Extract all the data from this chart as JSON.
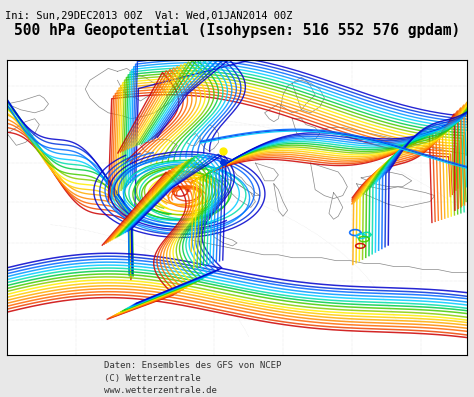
{
  "title_line1": "Ini: Sun,29DEC2013 00Z  Val: Wed,01JAN2014 00Z",
  "title_line2": "500 hPa Geopotential (Isohypsen: 516 552 576 gpdam)",
  "footer_line1": "Daten: Ensembles des GFS von NCEP",
  "footer_line2": "(C) Wetterzentrale",
  "footer_line3": "www.wetterzentrale.de",
  "background_color": "#e8e8e8",
  "map_bg": "#ffffff",
  "border_color": "#000000",
  "title1_fontsize": 7.5,
  "title2_fontsize": 10.5,
  "footer_fontsize": 6.5,
  "line_colors_warm": [
    "#cc0000",
    "#dd2200",
    "#ee4400",
    "#ff6600",
    "#ff8800",
    "#ffaa00",
    "#ffcc00",
    "#ffee00"
  ],
  "line_colors_cool": [
    "#0000cc",
    "#0033dd",
    "#0066ff",
    "#0099ff",
    "#00ccff",
    "#00ddaa",
    "#00cc44",
    "#44cc00",
    "#88cc00"
  ],
  "line_colors_all": [
    "#cc0000",
    "#ee4400",
    "#ff6600",
    "#ff8800",
    "#ffaa00",
    "#ffcc00",
    "#ffee00",
    "#88cc00",
    "#44cc00",
    "#00cc44",
    "#00ddaa",
    "#00ccff",
    "#0099ff",
    "#0066ff",
    "#0033dd",
    "#0000cc"
  ],
  "coast_color": "#888888",
  "coast_lw": 0.5,
  "grid_color": "#bbbbbb",
  "line_lw": 1.0,
  "line_alpha": 0.85
}
